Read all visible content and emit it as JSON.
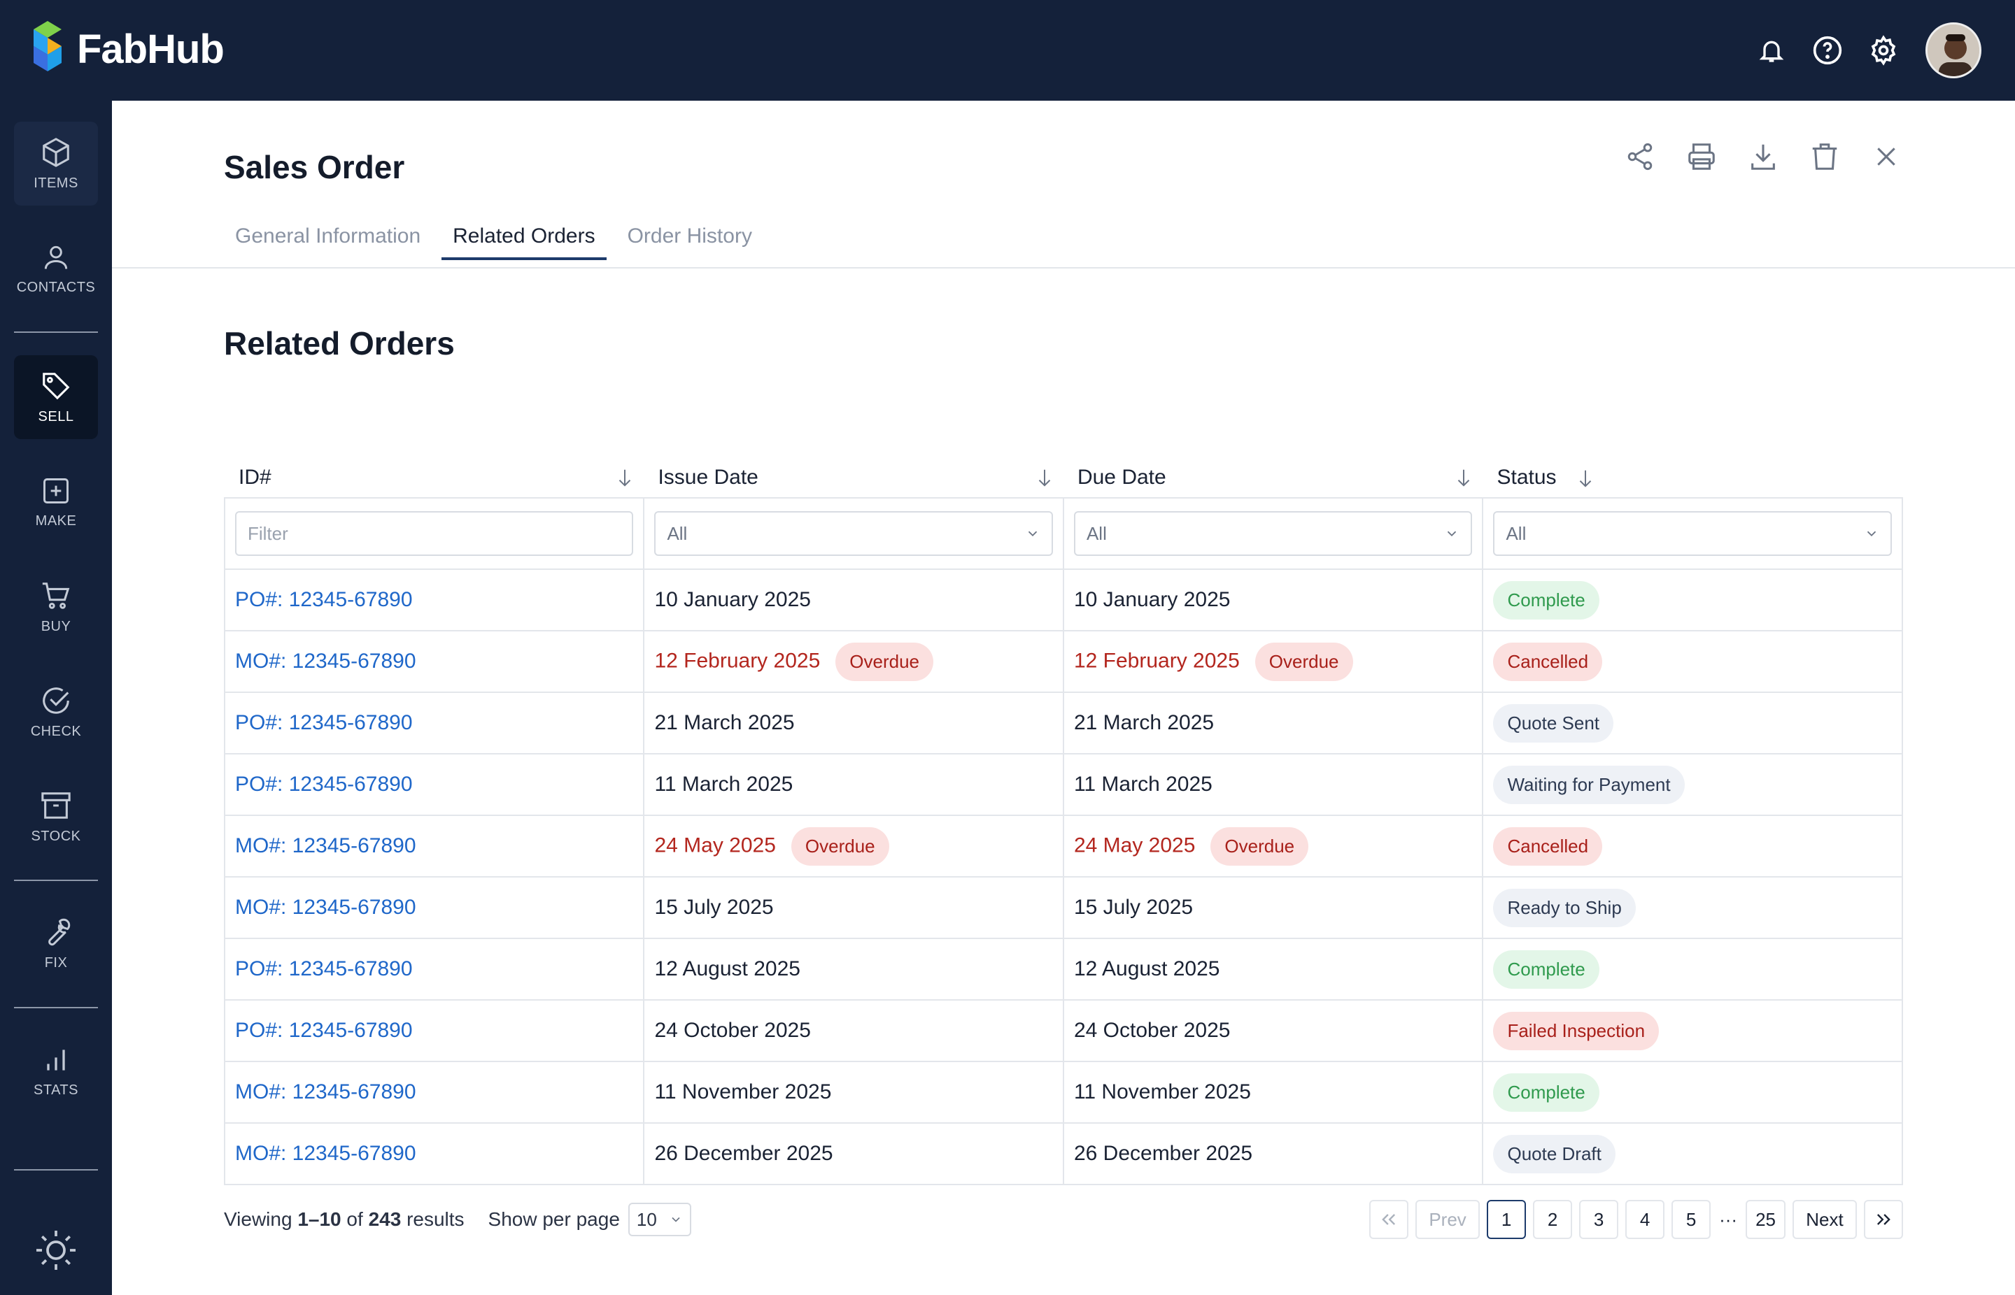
{
  "app": {
    "name": "FabHub"
  },
  "sidebar": {
    "items": [
      {
        "label": "ITEMS",
        "icon": "box-icon"
      },
      {
        "label": "CONTACTS",
        "icon": "person-icon"
      },
      {
        "label": "SELL",
        "icon": "tag-icon"
      },
      {
        "label": "MAKE",
        "icon": "plus-square-icon"
      },
      {
        "label": "BUY",
        "icon": "cart-icon"
      },
      {
        "label": "CHECK",
        "icon": "check-circle-icon"
      },
      {
        "label": "STOCK",
        "icon": "archive-icon"
      },
      {
        "label": "FIX",
        "icon": "wrench-icon"
      },
      {
        "label": "STATS",
        "icon": "bar-chart-icon"
      }
    ]
  },
  "page": {
    "title": "Sales Order",
    "section_title": "Related Orders"
  },
  "tabs": [
    {
      "label": "General Information"
    },
    {
      "label": "Related Orders"
    },
    {
      "label": "Order History"
    }
  ],
  "table": {
    "headers": {
      "id": "ID#",
      "issue": "Issue Date",
      "due": "Due Date",
      "status": "Status"
    },
    "filters": {
      "id_placeholder": "Filter",
      "issue": "All",
      "due": "All",
      "status": "All"
    },
    "rows": [
      {
        "id": "PO#: 12345-67890",
        "issue": "10 January 2025",
        "due": "10 January 2025",
        "status": "Complete"
      },
      {
        "id": "MO#: 12345-67890",
        "issue": "12 February 2025",
        "due": "12 February 2025",
        "status": "Cancelled",
        "overdue": "Overdue"
      },
      {
        "id": "PO#: 12345-67890",
        "issue": "21 March 2025",
        "due": "21 March 2025",
        "status": "Quote Sent"
      },
      {
        "id": "PO#: 12345-67890",
        "issue": "11 March 2025",
        "due": "11 March 2025",
        "status": "Waiting for Payment"
      },
      {
        "id": "MO#: 12345-67890",
        "issue": "24 May 2025",
        "due": "24 May 2025",
        "status": "Cancelled",
        "overdue": "Overdue"
      },
      {
        "id": "MO#: 12345-67890",
        "issue": "15 July 2025",
        "due": "15 July 2025",
        "status": "Ready to Ship"
      },
      {
        "id": "PO#: 12345-67890",
        "issue": "12 August 2025",
        "due": "12 August 2025",
        "status": "Complete"
      },
      {
        "id": "PO#: 12345-67890",
        "issue": "24 October 2025",
        "due": "24 October 2025",
        "status": "Failed Inspection"
      },
      {
        "id": "MO#: 12345-67890",
        "issue": "11 November 2025",
        "due": "11 November 2025",
        "status": "Complete"
      },
      {
        "id": "MO#: 12345-67890",
        "issue": "26 December 2025",
        "due": "26 December 2025",
        "status": "Quote Draft"
      }
    ]
  },
  "footer": {
    "viewing_prefix": "Viewing",
    "range": "1–10",
    "of": "of",
    "total": "243",
    "results": "results",
    "per_page_label": "Show per page",
    "per_page_value": "10"
  },
  "pagination": {
    "prev": "Prev",
    "next": "Next",
    "pages": [
      "1",
      "2",
      "3",
      "4",
      "5"
    ],
    "ellipsis": "···",
    "last": "25",
    "current": "1"
  },
  "colors": {
    "nav_bg": "#14213a",
    "link": "#1f67c9",
    "overdue_text": "#b3261e"
  }
}
